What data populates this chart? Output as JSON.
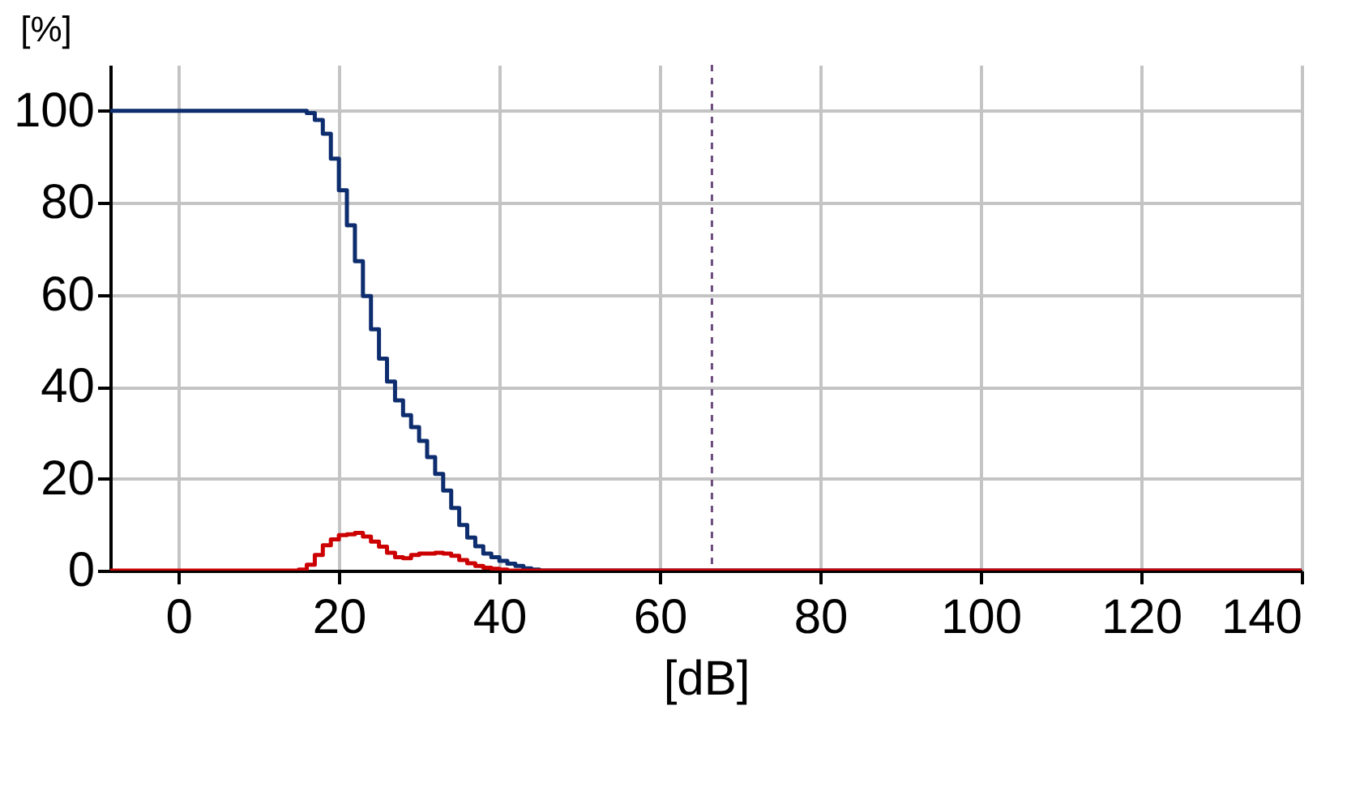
{
  "chart_data": {
    "type": "step",
    "xlabel": "[dB]",
    "ylabel": "[%]",
    "x": [
      -8.5,
      14,
      15,
      16,
      17,
      18,
      19,
      20,
      21,
      22,
      23,
      24,
      25,
      26,
      27,
      28,
      29,
      30,
      31,
      32,
      33,
      34,
      35,
      36,
      37,
      38,
      39,
      40,
      41,
      42,
      43,
      44,
      45,
      140
    ],
    "series": [
      {
        "color": "#0d2d6e",
        "values": [
          100,
          100,
          100,
          99.5,
          98,
          95,
          89.6,
          82.7,
          75.1,
          67.3,
          59.7,
          52.5,
          46.1,
          41.1,
          37.0,
          33.8,
          31.2,
          28.2,
          24.7,
          21.0,
          17.4,
          13.6,
          9.9,
          7.2,
          5.3,
          3.7,
          2.9,
          2.1,
          1.5,
          1.0,
          0.5,
          0.2,
          0,
          0
        ]
      },
      {
        "color": "#cc0000",
        "values": [
          0,
          0,
          0.2,
          1.3,
          3.4,
          5.5,
          6.8,
          7.7,
          7.9,
          8.2,
          7.4,
          6.3,
          5.2,
          3.9,
          2.9,
          2.7,
          3.4,
          3.7,
          3.7,
          3.9,
          3.7,
          3.2,
          2.3,
          1.6,
          1.0,
          0.6,
          0.4,
          0.2,
          0,
          0,
          0,
          0,
          0,
          0
        ]
      }
    ],
    "xlim": [
      -8.5,
      140
    ],
    "xticks": [
      0,
      20,
      40,
      60,
      80,
      100,
      120,
      140
    ],
    "ylim": [
      0,
      110
    ],
    "yticks": [
      0,
      20,
      40,
      60,
      80,
      100
    ],
    "grid": true,
    "ref_lines": [
      {
        "axis": "x",
        "value": 66.5,
        "color": "#6b4c7d",
        "line_style": "dashed"
      }
    ]
  }
}
